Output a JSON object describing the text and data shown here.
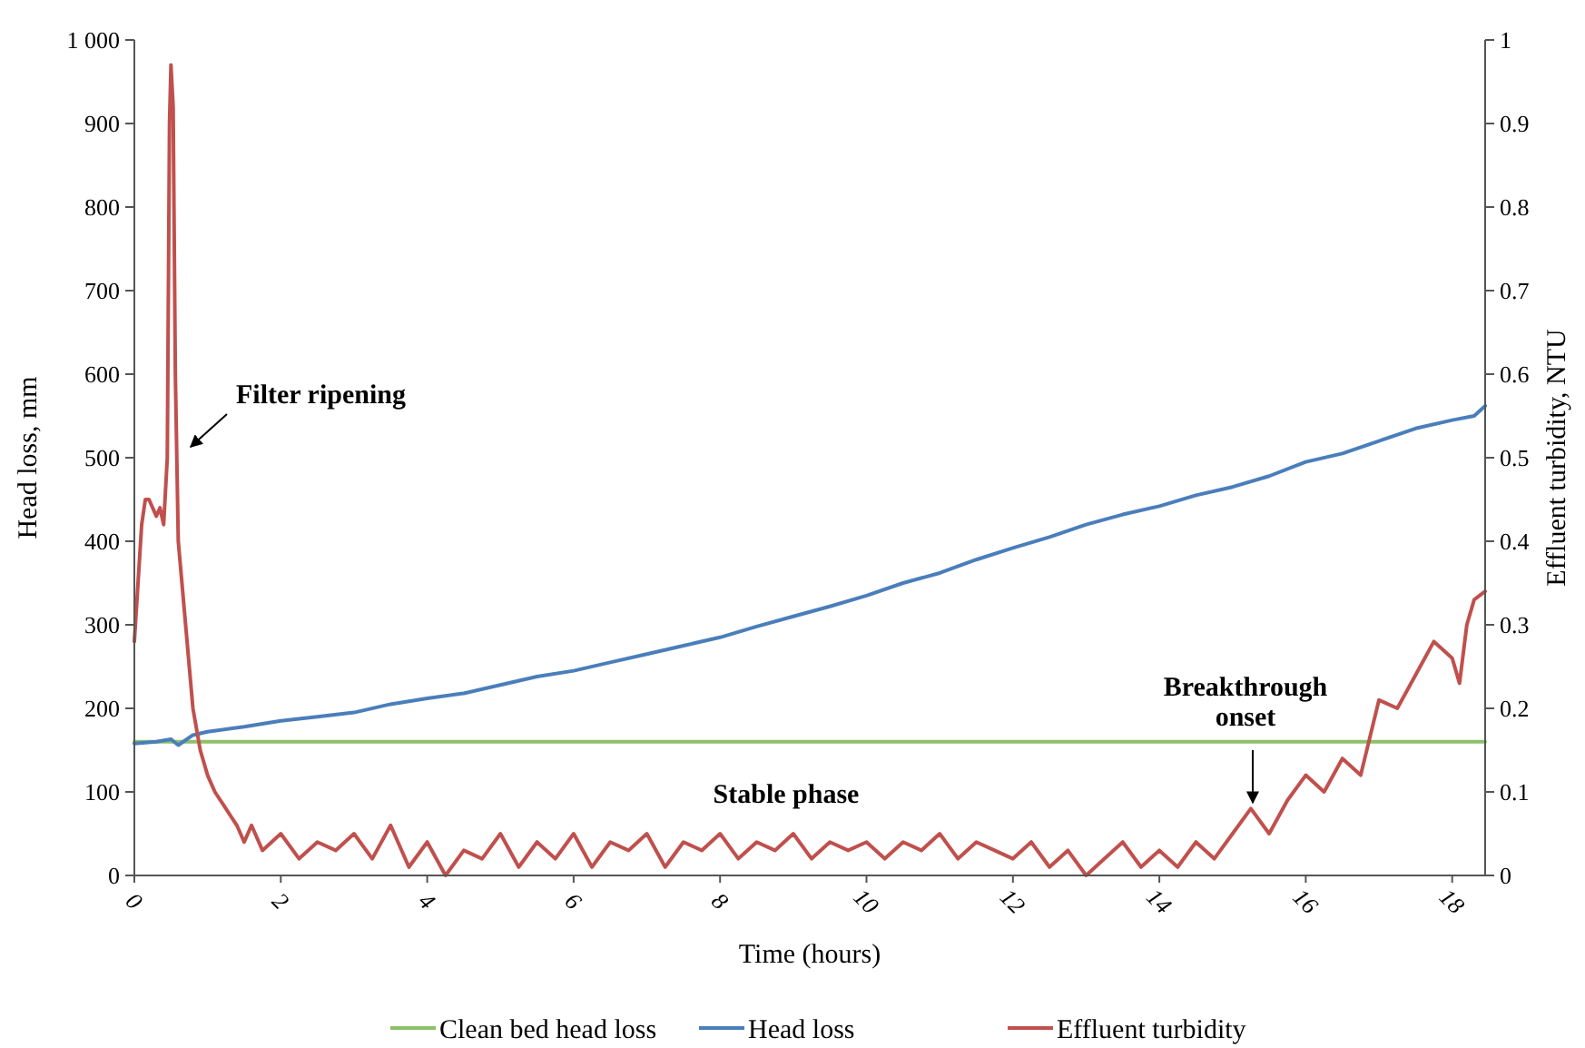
{
  "chart_data": {
    "type": "line",
    "xlabel": "Time (hours)",
    "ylabel": "Head loss, mm",
    "y2label": "Effluent turbidity, NTU",
    "xlim": [
      0,
      18.45
    ],
    "xticks": [
      0,
      2,
      4,
      6,
      8,
      10,
      12,
      14,
      16,
      18
    ],
    "ylim": [
      0,
      1000
    ],
    "yticks": [
      0,
      100,
      200,
      300,
      400,
      500,
      600,
      700,
      800,
      900,
      {
        "value": 1000,
        "label": "1 000"
      }
    ],
    "y2lim": [
      0,
      1
    ],
    "y2ticks": [
      0,
      0.1,
      0.2,
      0.3,
      0.4,
      0.5,
      0.6,
      0.7,
      0.8,
      0.9,
      1
    ],
    "legend": "bottom",
    "grid": false,
    "annotations": [
      "Filter ripening",
      "Stable phase",
      "Breakthrough onset"
    ],
    "series": [
      {
        "name": "Clean bed head loss",
        "color": "#8cc168",
        "x": [
          0,
          18.45
        ],
        "values": [
          160,
          160
        ]
      },
      {
        "name": "Head loss",
        "color": "#4a7ebb",
        "x": [
          0,
          0.3,
          0.5,
          0.6,
          0.8,
          1,
          1.5,
          2,
          2.5,
          3,
          3.5,
          4,
          4.5,
          5,
          5.5,
          6,
          6.5,
          7,
          7.5,
          8,
          8.5,
          9,
          9.5,
          10,
          10.5,
          11,
          11.5,
          12,
          12.5,
          13,
          13.5,
          14,
          14.5,
          15,
          15.5,
          16,
          16.5,
          17,
          17.5,
          18,
          18.3,
          18.45
        ],
        "values": [
          158,
          160,
          163,
          156,
          168,
          172,
          178,
          185,
          190,
          195,
          205,
          212,
          218,
          228,
          238,
          245,
          255,
          265,
          275,
          285,
          298,
          310,
          322,
          335,
          350,
          362,
          378,
          392,
          405,
          420,
          432,
          442,
          455,
          465,
          478,
          495,
          505,
          520,
          535,
          545,
          550,
          562
        ]
      },
      {
        "name": "Effluent turbidity",
        "color": "#c0504d",
        "axis": "y2",
        "x": [
          0,
          0.05,
          0.1,
          0.15,
          0.2,
          0.3,
          0.35,
          0.4,
          0.45,
          0.48,
          0.5,
          0.53,
          0.56,
          0.6,
          0.7,
          0.8,
          0.9,
          1,
          1.1,
          1.25,
          1.4,
          1.5,
          1.6,
          1.75,
          2,
          2.25,
          2.5,
          2.75,
          3,
          3.25,
          3.5,
          3.75,
          4,
          4.25,
          4.5,
          4.75,
          5,
          5.25,
          5.5,
          5.75,
          6,
          6.25,
          6.5,
          6.75,
          7,
          7.25,
          7.5,
          7.75,
          8,
          8.25,
          8.5,
          8.75,
          9,
          9.25,
          9.5,
          9.75,
          10,
          10.25,
          10.5,
          10.75,
          11,
          11.25,
          11.5,
          11.75,
          12,
          12.25,
          12.5,
          12.75,
          13,
          13.25,
          13.5,
          13.75,
          14,
          14.25,
          14.5,
          14.75,
          15,
          15.25,
          15.5,
          15.75,
          16,
          16.25,
          16.5,
          16.75,
          17,
          17.25,
          17.5,
          17.75,
          18,
          18.1,
          18.2,
          18.3,
          18.45
        ],
        "values": [
          0.28,
          0.35,
          0.42,
          0.45,
          0.45,
          0.43,
          0.44,
          0.42,
          0.5,
          0.9,
          0.97,
          0.92,
          0.6,
          0.4,
          0.3,
          0.2,
          0.15,
          0.12,
          0.1,
          0.08,
          0.06,
          0.04,
          0.06,
          0.03,
          0.05,
          0.02,
          0.04,
          0.03,
          0.05,
          0.02,
          0.06,
          0.01,
          0.04,
          0.0,
          0.03,
          0.02,
          0.05,
          0.01,
          0.04,
          0.02,
          0.05,
          0.01,
          0.04,
          0.03,
          0.05,
          0.01,
          0.04,
          0.03,
          0.05,
          0.02,
          0.04,
          0.03,
          0.05,
          0.02,
          0.04,
          0.03,
          0.04,
          0.02,
          0.04,
          0.03,
          0.05,
          0.02,
          0.04,
          0.03,
          0.02,
          0.04,
          0.01,
          0.03,
          0.0,
          0.02,
          0.04,
          0.01,
          0.03,
          0.01,
          0.04,
          0.02,
          0.05,
          0.08,
          0.05,
          0.09,
          0.12,
          0.1,
          0.14,
          0.12,
          0.21,
          0.2,
          0.24,
          0.28,
          0.26,
          0.23,
          0.3,
          0.33,
          0.34
        ]
      }
    ]
  }
}
